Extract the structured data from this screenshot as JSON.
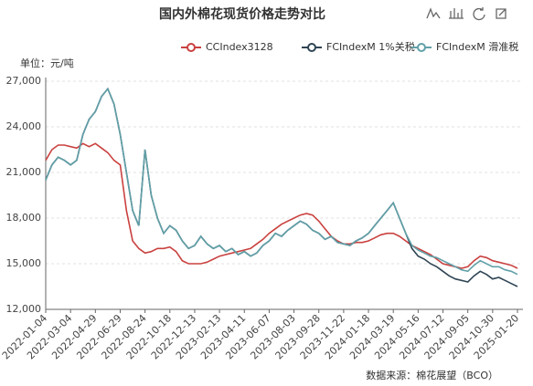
{
  "chart_data": {
    "type": "line",
    "title": "国内外棉花现货价格走势对比",
    "y_label": "单位：元/吨",
    "source": "数据来源：棉花展望（BCO）",
    "categories": [
      "2022-01-04",
      null,
      null,
      null,
      "2022-03-04",
      null,
      null,
      null,
      "2022-04-29",
      null,
      null,
      null,
      "2022-06-29",
      null,
      null,
      null,
      "2022-08-24",
      null,
      null,
      null,
      "2022-10-18",
      null,
      null,
      null,
      "2022-12-13",
      null,
      null,
      null,
      "2023-02-13",
      null,
      null,
      null,
      "2023-04-11",
      null,
      null,
      null,
      "2023-06-07",
      null,
      null,
      null,
      "2023-08-03",
      null,
      null,
      null,
      "2023-09-28",
      null,
      null,
      null,
      "2023-11-22",
      null,
      null,
      null,
      "2024-01-18",
      null,
      null,
      null,
      "2024-03-19",
      null,
      null,
      null,
      "2024-05-16",
      null,
      null,
      null,
      "2024-07-12",
      null,
      null,
      null,
      "2024-09-05",
      null,
      null,
      null,
      "2024-10-30",
      null,
      null,
      null,
      "2025-01-20"
    ],
    "series": [
      {
        "name": "CCIndex3128",
        "color": "#c9413f",
        "values": [
          21800,
          22500,
          22800,
          22800,
          22700,
          22600,
          22900,
          22700,
          22900,
          22600,
          22300,
          21800,
          21500,
          18500,
          16500,
          16000,
          15700,
          15800,
          16000,
          16000,
          16100,
          15800,
          15200,
          15000,
          15000,
          15000,
          15100,
          15300,
          15500,
          15600,
          15700,
          15800,
          15900,
          16000,
          16300,
          16600,
          17000,
          17300,
          17600,
          17800,
          18000,
          18200,
          18300,
          18200,
          17800,
          17300,
          16800,
          16500,
          16300,
          16300,
          16400,
          16400,
          16500,
          16700,
          16900,
          17000,
          17000,
          16800,
          16500,
          16200,
          16000,
          15800,
          15600,
          15300,
          15000,
          14900,
          14800,
          14700,
          14800,
          15200,
          15500,
          15400,
          15200,
          15100,
          15000,
          14900,
          14700
        ]
      },
      {
        "name": "FCIndexM 1%关税",
        "color": "#2f4554",
        "values": [
          20500,
          21500,
          22000,
          21800,
          21500,
          21800,
          23500,
          24500,
          25000,
          26000,
          26500,
          25500,
          23500,
          21000,
          18500,
          17500,
          22500,
          19500,
          18000,
          17000,
          17500,
          17200,
          16500,
          16000,
          16200,
          16800,
          16300,
          16000,
          16200,
          15800,
          16000,
          15600,
          15800,
          15500,
          15700,
          16200,
          16500,
          17000,
          16800,
          17200,
          17500,
          17800,
          17600,
          17200,
          17000,
          16600,
          16800,
          16400,
          16300,
          16200,
          16500,
          16700,
          17000,
          17500,
          18000,
          18500,
          19000,
          18000,
          17000,
          16000,
          15500,
          15300,
          15000,
          14800,
          14500,
          14200,
          14000,
          13900,
          13800,
          14200,
          14500,
          14300,
          14000,
          14100,
          13900,
          13700,
          13500
        ]
      },
      {
        "name": "FCIndexM 滑准税",
        "color": "#61a0a8",
        "values": [
          20500,
          21500,
          22000,
          21800,
          21500,
          21800,
          23500,
          24500,
          25000,
          26000,
          26500,
          25500,
          23500,
          21000,
          18500,
          17500,
          22500,
          19500,
          18000,
          17000,
          17500,
          17200,
          16500,
          16000,
          16200,
          16800,
          16300,
          16000,
          16200,
          15800,
          16000,
          15600,
          15800,
          15500,
          15700,
          16200,
          16500,
          17000,
          16800,
          17200,
          17500,
          17800,
          17600,
          17200,
          17000,
          16600,
          16800,
          16400,
          16300,
          16200,
          16500,
          16700,
          17000,
          17500,
          18000,
          18500,
          19000,
          18000,
          17000,
          16200,
          15900,
          15700,
          15500,
          15400,
          15200,
          15000,
          14800,
          14600,
          14500,
          14900,
          15200,
          15000,
          14800,
          14800,
          14600,
          14500,
          14300
        ]
      }
    ],
    "ylim": [
      12000,
      27000
    ],
    "yticks": [
      {
        "value": 12000,
        "label": "12,000"
      },
      {
        "value": 15000,
        "label": "15,000"
      },
      {
        "value": 18000,
        "label": "18,000"
      },
      {
        "value": 21000,
        "label": "21,000"
      },
      {
        "value": 24000,
        "label": "24,000"
      },
      {
        "value": 27000,
        "label": "27,000"
      }
    ],
    "grid": true,
    "legend": "top-right"
  }
}
